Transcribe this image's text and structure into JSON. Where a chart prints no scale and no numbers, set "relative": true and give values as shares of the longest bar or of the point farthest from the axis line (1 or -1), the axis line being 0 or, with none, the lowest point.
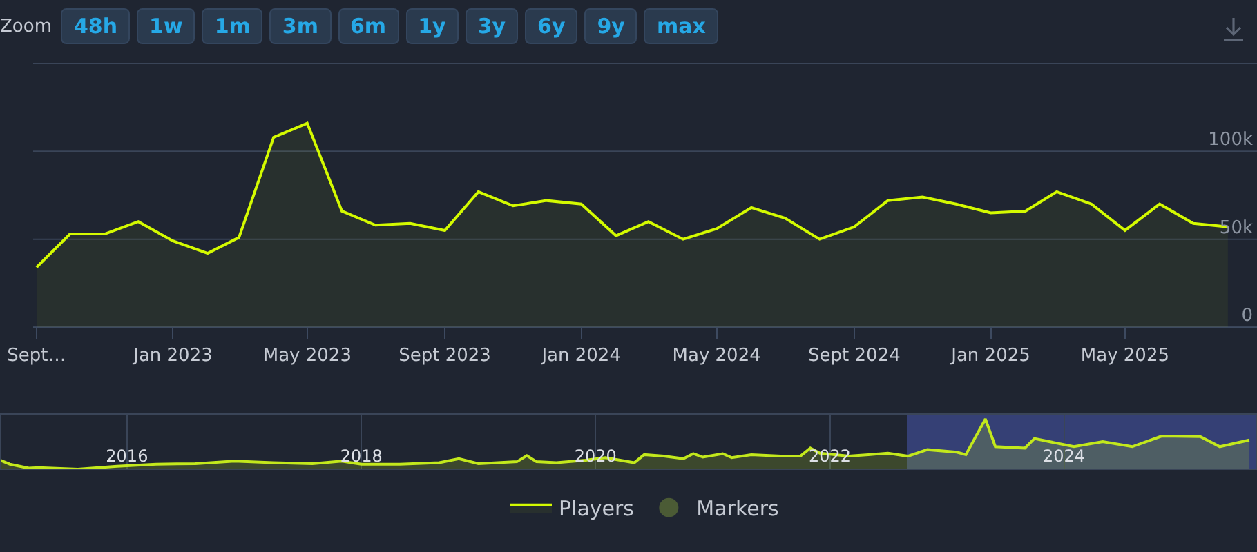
{
  "chart_data": [
    {
      "type": "area",
      "annotations": [
        "Zoom",
        "48h",
        "1w",
        "1m",
        "3m",
        "6m",
        "1y",
        "3y",
        "6y",
        "9y",
        "max"
      ],
      "x": [
        "2022-09",
        "2022-10",
        "2022-11",
        "2022-12",
        "2023-01",
        "2023-02",
        "2023-03",
        "2023-04",
        "2023-05",
        "2023-06",
        "2023-07",
        "2023-08",
        "2023-09",
        "2023-10",
        "2023-11",
        "2023-12",
        "2024-01",
        "2024-02",
        "2024-03",
        "2024-04",
        "2024-05",
        "2024-06",
        "2024-07",
        "2024-08",
        "2024-09",
        "2024-10",
        "2024-11",
        "2024-12",
        "2025-01",
        "2025-02",
        "2025-03",
        "2025-04",
        "2025-05",
        "2025-06",
        "2025-07",
        "2025-08"
      ],
      "series": [
        {
          "name": "Players",
          "color": "#d4fa00",
          "values": [
            34000,
            53000,
            53000,
            60000,
            49000,
            42000,
            51000,
            108000,
            116000,
            66000,
            58000,
            59000,
            55000,
            77000,
            69000,
            72000,
            70000,
            52000,
            60000,
            50000,
            56000,
            68000,
            62000,
            50000,
            57000,
            72000,
            74000,
            70000,
            65000,
            66000,
            77000,
            70000,
            55000,
            70000,
            59000,
            57000
          ]
        },
        {
          "name": "Markers",
          "type": "scatter",
          "color": "#4b5b35",
          "values": [
            null,
            null,
            null,
            null,
            null,
            null,
            null,
            null,
            null,
            null,
            null,
            null,
            null,
            null,
            null,
            null,
            null,
            null,
            null,
            null,
            null,
            null,
            null,
            null,
            null,
            null,
            null,
            null,
            null,
            null,
            null,
            null,
            null,
            null,
            null,
            null
          ]
        }
      ],
      "xlim": [
        "2022-08-29",
        "2025-08-27"
      ],
      "xticks": [
        {
          "value": "2022-09",
          "label": "Sept…"
        },
        {
          "value": "2023-01",
          "label": "Jan 2023"
        },
        {
          "value": "2023-05",
          "label": "May 2023"
        },
        {
          "value": "2023-09",
          "label": "Sept 2023"
        },
        {
          "value": "2024-01",
          "label": "Jan 2024"
        },
        {
          "value": "2024-05",
          "label": "May 2024"
        },
        {
          "value": "2024-09",
          "label": "Sept 2024"
        },
        {
          "value": "2025-01",
          "label": "Jan 2025"
        },
        {
          "value": "2025-05",
          "label": "May 2025"
        }
      ],
      "ylim": [
        0,
        150000
      ],
      "yticks": [
        0,
        {
          "value": 50000,
          "label": "50k"
        },
        {
          "value": 100000,
          "label": "100k"
        },
        {
          "value": 150000,
          "label": null
        }
      ],
      "grid": "y",
      "legend": "bottom"
    },
    {
      "type": "area",
      "relative": true,
      "tick_labels": "x",
      "grid": "x",
      "x": [
        "2014-12",
        "2015-01",
        "2015-03",
        "2015-04",
        "2015-08",
        "2015-12",
        "2016-04",
        "2016-08",
        "2016-12",
        "2017-04",
        "2017-08",
        "2017-11",
        "2018-01",
        "2018-05",
        "2018-09",
        "2018-11",
        "2019-01",
        "2019-05",
        "2019-06",
        "2019-07",
        "2019-09",
        "2019-12",
        "2020-02",
        "2020-05",
        "2020-06",
        "2020-08",
        "2020-10",
        "2020-11",
        "2020-12",
        "2021-02",
        "2021-03",
        "2021-05",
        "2021-08",
        "2021-10",
        "2021-11",
        "2021-12",
        "2022-03",
        "2022-05",
        "2022-07",
        "2022-09",
        "2022-11",
        "2023-02",
        "2023-03",
        "2023-05",
        "2023-06",
        "2023-09",
        "2023-10",
        "2024-02",
        "2024-05",
        "2024-08",
        "2024-11",
        "2025-03",
        "2025-05",
        "2025-08"
      ],
      "series": [
        {
          "color": "#c3e81c",
          "values": [
            0.18,
            0.1,
            0.02,
            0.03,
            0,
            0.06,
            0.1,
            0.11,
            0.16,
            0.13,
            0.11,
            0.16,
            0.1,
            0.1,
            0.13,
            0.21,
            0.11,
            0.15,
            0.27,
            0.15,
            0.13,
            0.18,
            0.23,
            0.13,
            0.29,
            0.26,
            0.21,
            0.31,
            0.24,
            0.31,
            0.23,
            0.29,
            0.26,
            0.26,
            0.42,
            0.32,
            0.26,
            0.29,
            0.32,
            0.26,
            0.39,
            0.34,
            0.29,
            1,
            0.45,
            0.42,
            0.61,
            0.45,
            0.55,
            0.45,
            0.66,
            0.65,
            0.45,
            0.58
          ]
        }
      ],
      "xlim": [
        "2014-12-01",
        "2025-08-25"
      ],
      "xticks": [
        {
          "value": "2016-01",
          "label": "2016"
        },
        {
          "value": "2018-01",
          "label": "2018"
        },
        {
          "value": "2020-01",
          "label": "2020"
        },
        {
          "value": "2022-01",
          "label": "2022"
        },
        {
          "value": "2024-01",
          "label": "2024"
        }
      ],
      "bands": [
        {
          "axis": "x",
          "from": "2022-08-29",
          "to": "2025-08-25",
          "color": "#3d4a8c"
        }
      ]
    }
  ]
}
